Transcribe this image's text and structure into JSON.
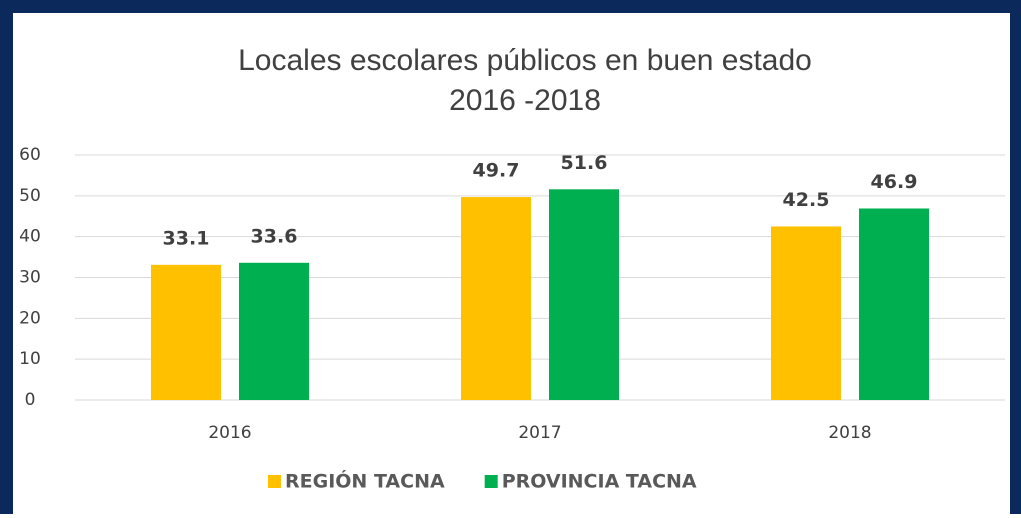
{
  "chart_data": {
    "type": "bar",
    "title": "Locales escolares públicos en buen estado",
    "subtitle": "2016 -2018",
    "categories": [
      "2016",
      "2017",
      "2018"
    ],
    "series": [
      {
        "name": "REGIÓN TACNA",
        "color": "#ffc000",
        "values": [
          33.1,
          49.7,
          42.5
        ]
      },
      {
        "name": "PROVINCIA TACNA",
        "color": "#00b050",
        "values": [
          33.6,
          51.6,
          46.9
        ]
      }
    ],
    "ylim": [
      0,
      60
    ],
    "yticks": [
      0,
      10,
      20,
      30,
      40,
      50,
      60
    ],
    "grid": true,
    "legend": "bottom"
  }
}
